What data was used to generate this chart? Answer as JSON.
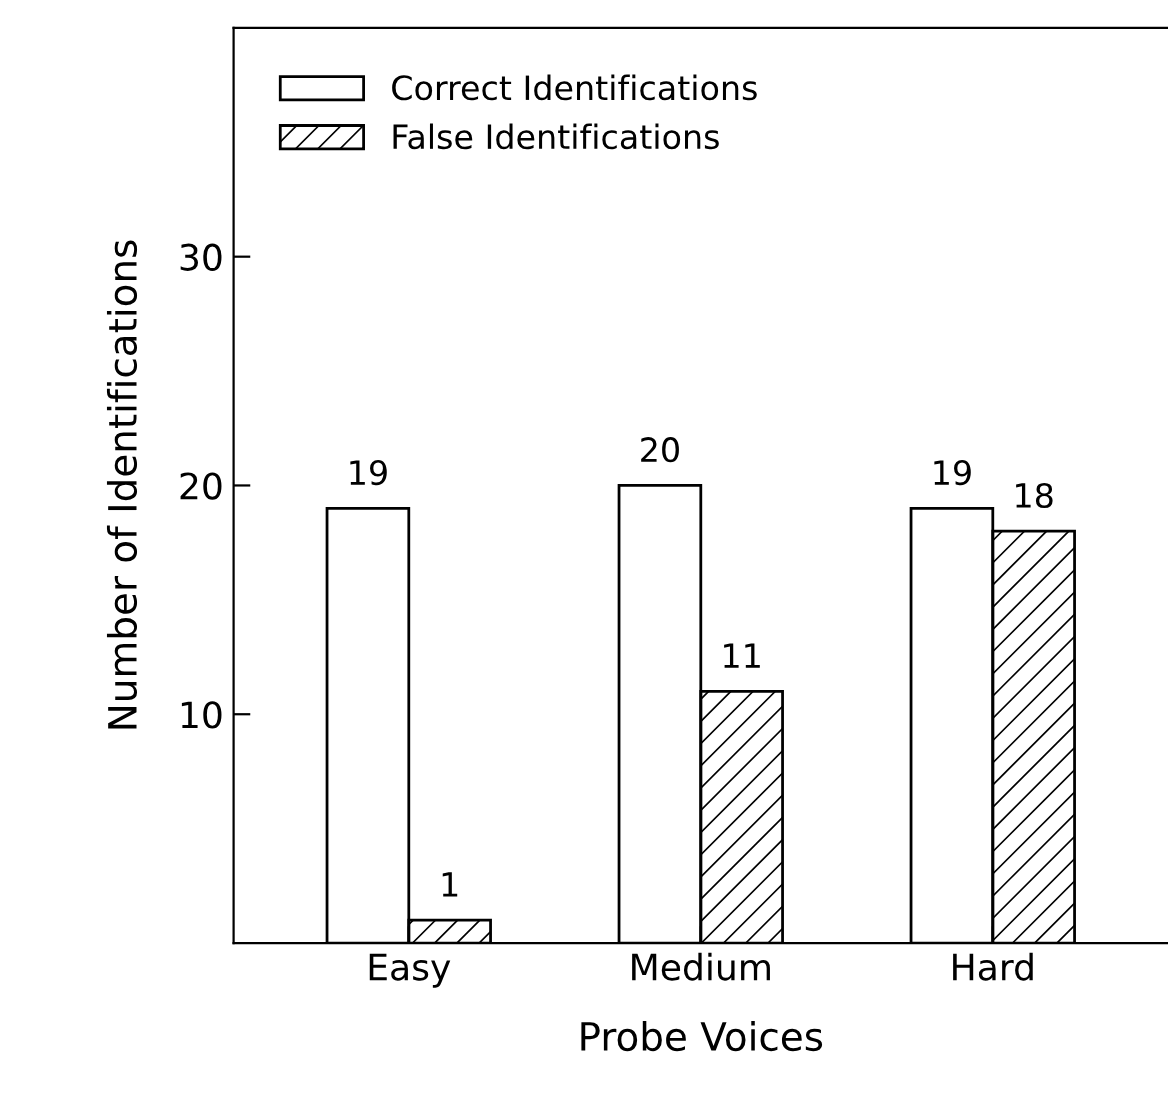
{
  "chart_data": {
    "type": "bar",
    "xlabel": "Probe Voices",
    "ylabel": "Number of Identifications",
    "categories": [
      "Easy",
      "Medium",
      "Hard"
    ],
    "series": [
      {
        "name": "Correct Identifications",
        "color": "#ffffff",
        "values": [
          19,
          20,
          19
        ]
      },
      {
        "name": "False Identifications",
        "color": "#000000",
        "values": [
          1,
          11,
          18
        ]
      }
    ],
    "ylim": [
      0,
      40
    ],
    "yticks": [
      10,
      20,
      30
    ],
    "data_labels": true,
    "legend": "top left",
    "grid": false
  }
}
